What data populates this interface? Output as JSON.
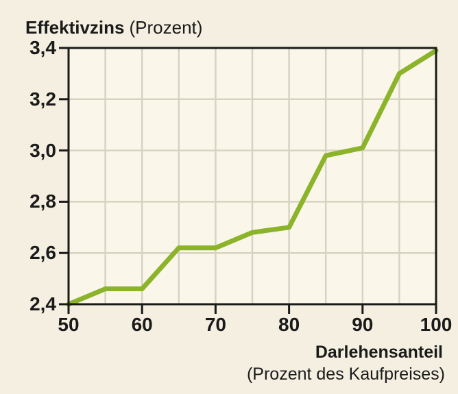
{
  "title": {
    "main": "Effektivzins",
    "unit": "(Prozent)"
  },
  "x_axis_title": {
    "main": "Darlehensanteil",
    "unit": "(Prozent des Kaufpreises)"
  },
  "chart_data": {
    "type": "line",
    "series_name": "Effektivzins",
    "x": [
      50,
      55,
      60,
      65,
      70,
      75,
      80,
      85,
      90,
      95,
      100
    ],
    "values": [
      2.4,
      2.46,
      2.46,
      2.62,
      2.62,
      2.68,
      2.7,
      2.98,
      3.01,
      3.3,
      3.39
    ],
    "xlabel": "Darlehensanteil (Prozent des Kaufpreises)",
    "ylabel": "Effektivzins (Prozent)",
    "xlim": [
      50,
      100
    ],
    "ylim": [
      2.4,
      3.4
    ],
    "x_ticks": [
      50,
      60,
      70,
      80,
      90,
      100
    ],
    "x_tick_labels": [
      "50",
      "60",
      "70",
      "80",
      "90",
      "100"
    ],
    "y_ticks": [
      2.4,
      2.6,
      2.8,
      3.0,
      3.2,
      3.4
    ],
    "y_tick_labels": [
      "2,4",
      "2,6",
      "2,8",
      "3,0",
      "3,2",
      "3,4"
    ],
    "x_grid_step": 5,
    "grid": true,
    "legend": false
  },
  "colors": {
    "background": "#f4efe0",
    "plot_background": "#faf7ea",
    "grid": "#d6d3c2",
    "axis": "#1a1a1a",
    "line": "#8cb42a",
    "text": "#1a1a1a"
  }
}
